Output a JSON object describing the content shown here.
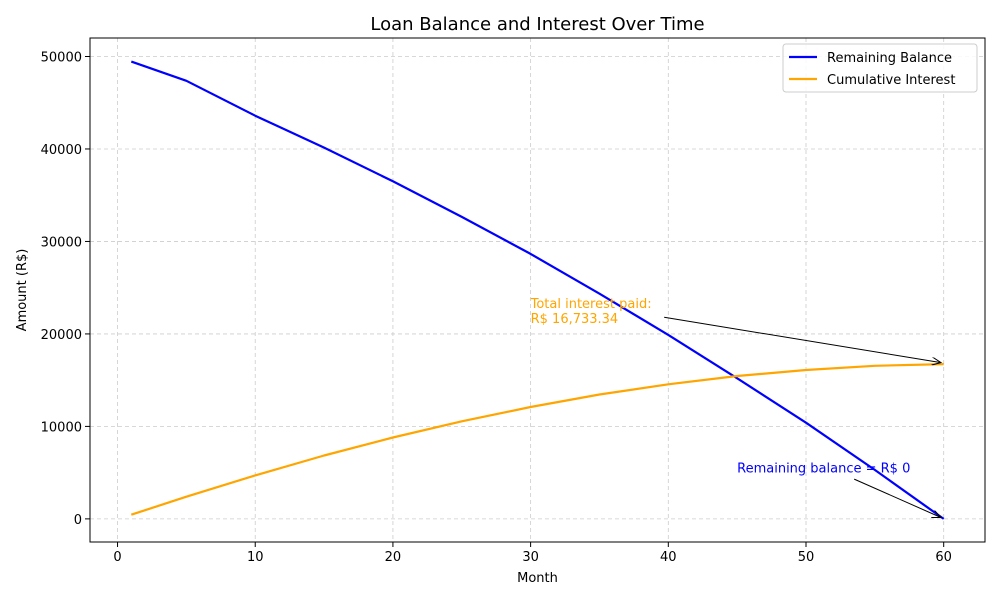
{
  "chart_data": {
    "type": "line",
    "title": "Loan Balance and Interest Over Time",
    "xlabel": "Month",
    "ylabel": "Amount (R$)",
    "xlim": [
      -2,
      63
    ],
    "ylim": [
      -2500,
      52000
    ],
    "xticks": [
      0,
      10,
      20,
      30,
      40,
      50,
      60
    ],
    "yticks": [
      0,
      10000,
      20000,
      30000,
      40000,
      50000
    ],
    "grid": true,
    "legend_position": "top-right",
    "series": [
      {
        "name": "Remaining Balance",
        "color": "#0000ff",
        "x": [
          1,
          5,
          10,
          15,
          20,
          25,
          30,
          35,
          40,
          45,
          50,
          55,
          60
        ],
        "values": [
          49450,
          47370,
          43600,
          40150,
          36500,
          32650,
          28650,
          24350,
          19900,
          15200,
          10400,
          5300,
          0
        ]
      },
      {
        "name": "Cumulative Interest",
        "color": "#ffa500",
        "x": [
          1,
          5,
          10,
          15,
          20,
          25,
          30,
          35,
          40,
          45,
          50,
          55,
          60
        ],
        "values": [
          450,
          2400,
          4700,
          6850,
          8800,
          10550,
          12100,
          13450,
          14550,
          15450,
          16100,
          16550,
          16733.34
        ]
      }
    ],
    "annotations": [
      {
        "text_lines": [
          "Total interest paid:",
          "R$ 16,733.34"
        ],
        "color": "#ffa500",
        "text_x": 30,
        "text_y": 22800,
        "arrow_from": [
          39.7,
          21800
        ],
        "arrow_to": [
          59.8,
          16900
        ]
      },
      {
        "text_lines": [
          "Remaining balance = R$ 0"
        ],
        "color": "#0000ff",
        "text_x": 45,
        "text_y": 5000,
        "arrow_from": [
          53.5,
          4300
        ],
        "arrow_to": [
          59.8,
          150
        ]
      }
    ]
  }
}
